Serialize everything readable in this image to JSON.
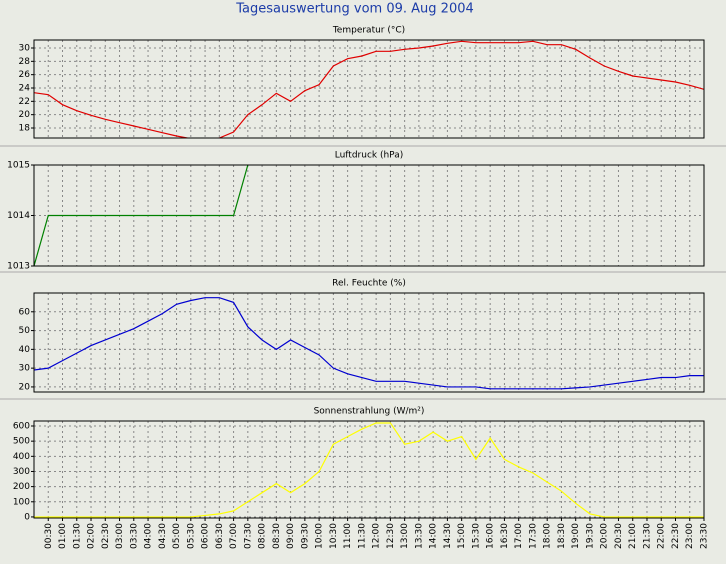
{
  "title": "Tagesauswertung vom 09. Aug 2004",
  "x_axis": {
    "xlim": [
      0,
      23.5
    ],
    "x": [
      0,
      0.5,
      1,
      1.5,
      2,
      2.5,
      3,
      3.5,
      4,
      4.5,
      5,
      5.5,
      6,
      6.5,
      7,
      7.5,
      8,
      8.5,
      9,
      9.5,
      10,
      10.5,
      11,
      11.5,
      12,
      12.5,
      13,
      13.5,
      14,
      14.5,
      15,
      15.5,
      16,
      16.5,
      17,
      17.5,
      18,
      18.5,
      19,
      19.5,
      20,
      20.5,
      21,
      21.5,
      22,
      22.5,
      23,
      23.5
    ],
    "xticks": [
      {
        "value": 0.5,
        "label": "00:30"
      },
      {
        "value": 1,
        "label": "01:00"
      },
      {
        "value": 1.5,
        "label": "01:30"
      },
      {
        "value": 2,
        "label": "02:00"
      },
      {
        "value": 2.5,
        "label": "02:30"
      },
      {
        "value": 3,
        "label": "03:00"
      },
      {
        "value": 3.5,
        "label": "03:30"
      },
      {
        "value": 4,
        "label": "04:00"
      },
      {
        "value": 4.5,
        "label": "04:30"
      },
      {
        "value": 5,
        "label": "05:00"
      },
      {
        "value": 5.5,
        "label": "05:30"
      },
      {
        "value": 6,
        "label": "06:00"
      },
      {
        "value": 6.5,
        "label": "06:30"
      },
      {
        "value": 7,
        "label": "07:00"
      },
      {
        "value": 7.5,
        "label": "07:30"
      },
      {
        "value": 8,
        "label": "08:00"
      },
      {
        "value": 8.5,
        "label": "08:30"
      },
      {
        "value": 9,
        "label": "09:00"
      },
      {
        "value": 9.5,
        "label": "09:30"
      },
      {
        "value": 10,
        "label": "10:00"
      },
      {
        "value": 10.5,
        "label": "10:30"
      },
      {
        "value": 11,
        "label": "11:00"
      },
      {
        "value": 11.5,
        "label": "11:30"
      },
      {
        "value": 12,
        "label": "12:00"
      },
      {
        "value": 12.5,
        "label": "12:30"
      },
      {
        "value": 13,
        "label": "13:00"
      },
      {
        "value": 13.5,
        "label": "13:30"
      },
      {
        "value": 14,
        "label": "14:00"
      },
      {
        "value": 14.5,
        "label": "14:30"
      },
      {
        "value": 15,
        "label": "15:00"
      },
      {
        "value": 15.5,
        "label": "15:30"
      },
      {
        "value": 16,
        "label": "16:00"
      },
      {
        "value": 16.5,
        "label": "16:30"
      },
      {
        "value": 17,
        "label": "17:00"
      },
      {
        "value": 17.5,
        "label": "17:30"
      },
      {
        "value": 18,
        "label": "18:00"
      },
      {
        "value": 18.5,
        "label": "18:30"
      },
      {
        "value": 19,
        "label": "19:00"
      },
      {
        "value": 19.5,
        "label": "19:30"
      },
      {
        "value": 20,
        "label": "20:00"
      },
      {
        "value": 20.5,
        "label": "20:30"
      },
      {
        "value": 21,
        "label": "21:00"
      },
      {
        "value": 21.5,
        "label": "21:30"
      },
      {
        "value": 22,
        "label": "22:00"
      },
      {
        "value": 22.5,
        "label": "22:30"
      },
      {
        "value": 23,
        "label": "23:00"
      },
      {
        "value": 23.5,
        "label": "23:30"
      }
    ]
  },
  "chart_data": [
    {
      "type": "line",
      "title": "Temperatur (°C)",
      "color": "#e00000",
      "ylim": [
        16.5,
        31.2
      ],
      "yticks": [
        18,
        20,
        22,
        24,
        26,
        28,
        30
      ],
      "grid": true,
      "values": [
        23.3,
        23.0,
        21.5,
        20.6,
        19.9,
        19.3,
        18.8,
        18.3,
        17.8,
        17.3,
        16.8,
        16.4,
        16.2,
        16.5,
        17.4,
        20.0,
        21.5,
        23.2,
        22.0,
        23.6,
        24.5,
        27.3,
        28.4,
        28.8,
        29.5,
        29.5,
        29.8,
        30.0,
        30.3,
        30.7,
        31.0,
        30.8,
        30.8,
        30.8,
        30.8,
        31.0,
        30.5,
        30.5,
        29.8,
        28.5,
        27.3,
        26.5,
        25.8,
        25.5,
        25.2,
        24.9,
        24.4,
        23.8
      ]
    },
    {
      "type": "line",
      "title": "Luftdruck (hPa)",
      "color": "#008000",
      "ylim": [
        1013,
        1015
      ],
      "yticks": [
        1013,
        1014,
        1015
      ],
      "grid": true,
      "values": [
        1013,
        1014,
        1014,
        1014,
        1014,
        1014,
        1014,
        1014,
        1014,
        1014,
        1014,
        1014,
        1014,
        1014,
        1014,
        1015,
        null,
        null,
        null,
        null,
        null,
        null,
        null,
        null,
        null,
        null,
        null,
        null,
        null,
        null,
        null,
        null,
        null,
        null,
        null,
        null,
        null,
        null,
        null,
        null,
        null,
        null,
        null,
        null,
        null,
        null,
        null,
        null
      ]
    },
    {
      "type": "line",
      "title": "Rel. Feuchte (%)",
      "color": "#0000d0",
      "ylim": [
        17.3,
        70
      ],
      "yticks": [
        20,
        30,
        40,
        50,
        60
      ],
      "grid": true,
      "values": [
        29,
        30,
        34,
        38,
        42,
        45,
        48,
        51,
        55,
        59,
        64,
        66,
        67.5,
        67.5,
        65,
        52,
        45,
        40,
        45,
        41,
        37,
        30,
        27,
        25,
        23,
        23,
        23,
        22,
        21,
        20,
        20,
        20,
        19,
        19,
        19,
        19,
        19,
        19,
        19.5,
        20,
        21,
        22,
        23,
        24,
        25,
        25,
        26,
        26
      ]
    },
    {
      "type": "line",
      "title": "Sonnenstrahlung (W/m²)",
      "color": "#ffff00",
      "ylim": [
        -7,
        633
      ],
      "yticks": [
        0,
        100,
        200,
        300,
        400,
        500,
        600
      ],
      "grid": true,
      "values": [
        0,
        0,
        0,
        0,
        0,
        0,
        0,
        0,
        0,
        0,
        0,
        0,
        10,
        20,
        40,
        100,
        160,
        220,
        160,
        220,
        300,
        480,
        530,
        580,
        620,
        620,
        480,
        500,
        560,
        500,
        530,
        380,
        520,
        380,
        330,
        290,
        230,
        170,
        90,
        20,
        0,
        0,
        0,
        0,
        0,
        0,
        0,
        0
      ]
    }
  ]
}
